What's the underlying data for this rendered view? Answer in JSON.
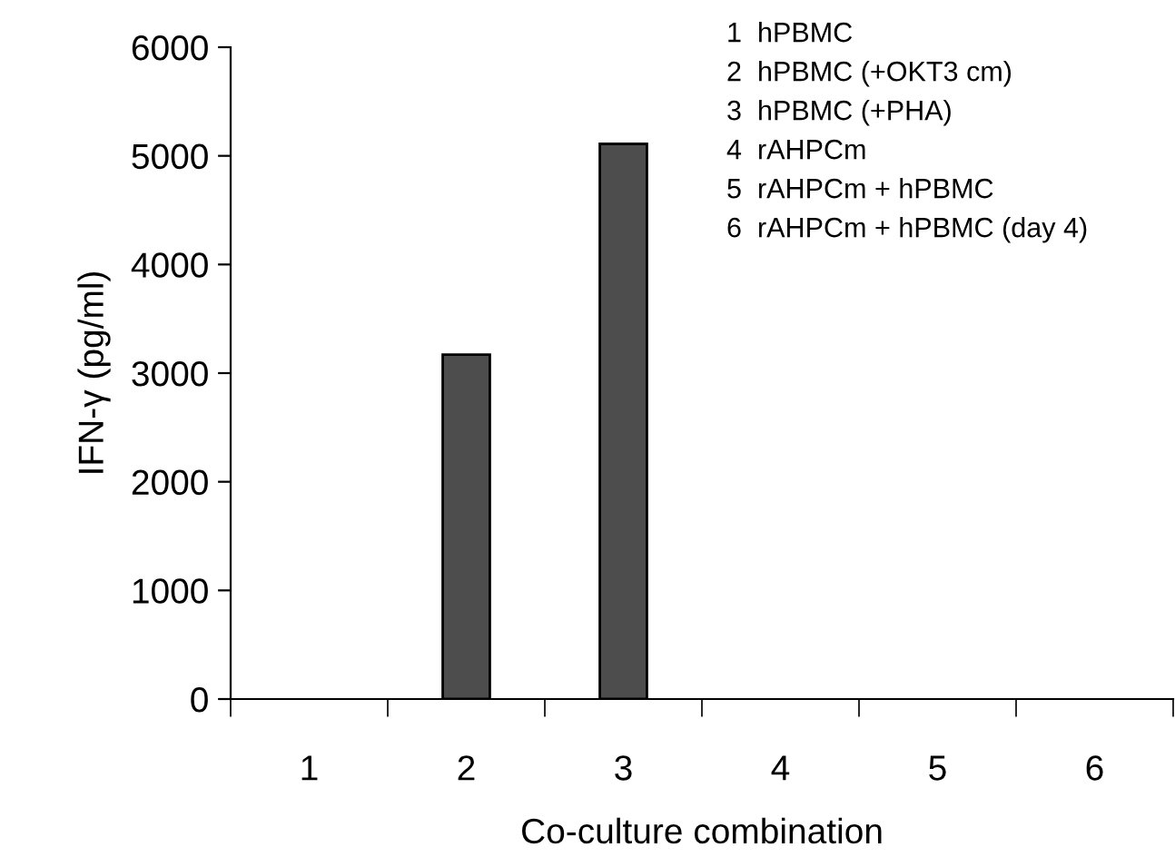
{
  "chart_data": {
    "type": "bar",
    "xlabel": "Co-culture combination",
    "ylabel": "IFN-γ (pg/ml)",
    "categories": [
      "1",
      "2",
      "3",
      "4",
      "5",
      "6"
    ],
    "values": [
      0,
      3170,
      5110,
      0,
      0,
      0
    ],
    "color": "#4d4d4d",
    "ylim": [
      0,
      6000
    ],
    "yticks": [
      0,
      1000,
      2000,
      3000,
      4000,
      5000,
      6000
    ],
    "grid": false,
    "legend": false,
    "annotations": [
      "1  hPBMC",
      "2  hPBMC (+OKT3 cm)",
      "3  hPBMC (+PHA)",
      "4  rAHPCm",
      "5  rAHPCm + hPBMC",
      "6  rAHPCm + hPBMC (day 4)"
    ]
  }
}
